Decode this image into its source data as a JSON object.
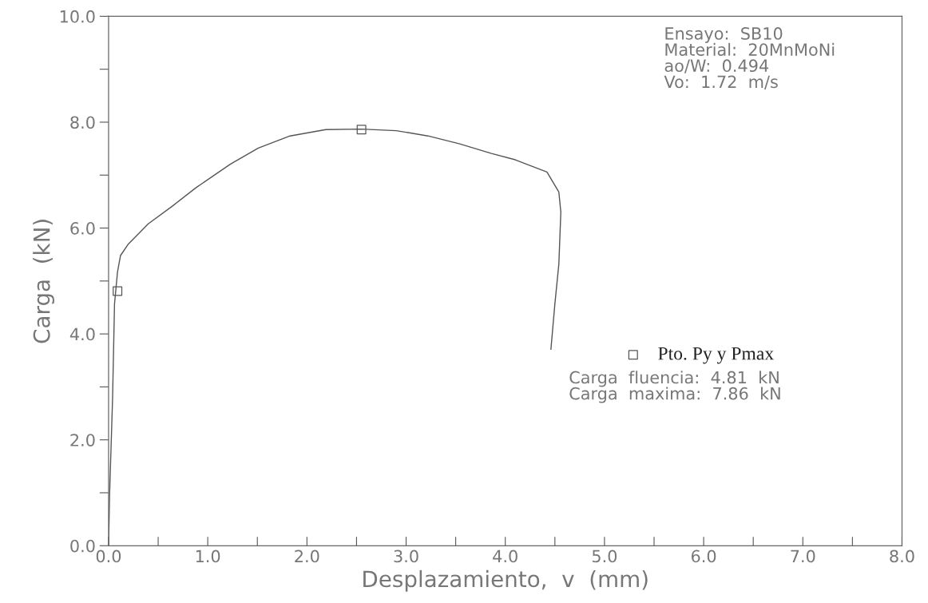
{
  "chart_data": {
    "type": "line",
    "xlabel": "Desplazamiento,  v  (mm)",
    "ylabel": "Carga  (kN)",
    "xlim": [
      0,
      8
    ],
    "ylim": [
      0,
      10
    ],
    "xticks": [
      {
        "value": 0,
        "label": "0.0"
      },
      {
        "value": 0.5,
        "label": null
      },
      {
        "value": 1,
        "label": "1.0"
      },
      {
        "value": 1.5,
        "label": null
      },
      {
        "value": 2,
        "label": "2.0"
      },
      {
        "value": 2.5,
        "label": null
      },
      {
        "value": 3,
        "label": "3.0"
      },
      {
        "value": 3.5,
        "label": null
      },
      {
        "value": 4,
        "label": "4.0"
      },
      {
        "value": 4.5,
        "label": null
      },
      {
        "value": 5,
        "label": "5.0"
      },
      {
        "value": 5.5,
        "label": null
      },
      {
        "value": 6,
        "label": "6.0"
      },
      {
        "value": 6.5,
        "label": null
      },
      {
        "value": 7,
        "label": "7.0"
      },
      {
        "value": 7.5,
        "label": null
      },
      {
        "value": 8,
        "label": "8.0"
      }
    ],
    "yticks": [
      {
        "value": 0,
        "label": "0.0"
      },
      {
        "value": 1,
        "label": null
      },
      {
        "value": 2,
        "label": "2.0"
      },
      {
        "value": 3,
        "label": null
      },
      {
        "value": 4,
        "label": "4.0"
      },
      {
        "value": 5,
        "label": null
      },
      {
        "value": 6,
        "label": "6.0"
      },
      {
        "value": 7,
        "label": null
      },
      {
        "value": 8,
        "label": "8.0"
      },
      {
        "value": 9,
        "label": null
      },
      {
        "value": 10,
        "label": "10.0"
      }
    ],
    "grid": false,
    "legend": "right",
    "series": [
      {
        "color": "#555555",
        "marker": "none",
        "line_style": "solid",
        "x": [
          0.0,
          0.01,
          0.04,
          0.06,
          0.09,
          0.12,
          0.2,
          0.4,
          0.64,
          0.88,
          1.23,
          1.51,
          1.83,
          2.19,
          2.55,
          2.9,
          3.22,
          3.54,
          3.86,
          4.1,
          4.42,
          4.54,
          4.56,
          4.54,
          4.5,
          4.46
        ],
        "values": [
          0.0,
          0.95,
          2.76,
          4.57,
          5.17,
          5.48,
          5.7,
          6.08,
          6.41,
          6.76,
          7.21,
          7.51,
          7.74,
          7.86,
          7.87,
          7.84,
          7.74,
          7.59,
          7.41,
          7.29,
          7.06,
          6.68,
          6.3,
          5.32,
          4.57,
          3.71
        ]
      },
      {
        "type": "scatter",
        "name": "Pto. Py y Pmax",
        "color": "#555555",
        "marker": "square",
        "x": [
          0.09,
          2.55
        ],
        "values": [
          4.81,
          7.86
        ]
      }
    ],
    "annotations": [
      "Ensayo:  SB10\nMaterial:  20MnMoNi\nao/W:  0.494\nVo:  1.72  m/s",
      "Carga  fluencia:  4.81  kN\nCarga  maxima:  7.86  kN"
    ]
  }
}
